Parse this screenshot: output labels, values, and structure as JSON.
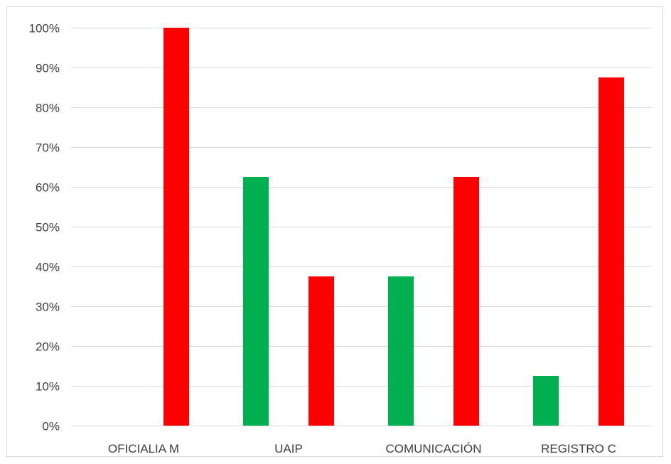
{
  "chart_data": {
    "type": "bar",
    "categories": [
      "OFICIALIA M",
      "UAIP",
      "COMUNICACIÓN",
      "REGISTRO C"
    ],
    "series": [
      {
        "values": [
          0,
          62.5,
          37.5,
          12.5
        ],
        "color": "#00b050"
      },
      {
        "values": [
          100,
          37.5,
          62.5,
          87.5
        ],
        "color": "#ff0000"
      }
    ],
    "ylim": [
      0,
      100
    ],
    "y_ticks": [
      0,
      10,
      20,
      30,
      40,
      50,
      60,
      70,
      80,
      90,
      100
    ],
    "y_tick_labels": [
      "0%",
      "10%",
      "20%",
      "30%",
      "40%",
      "50%",
      "60%",
      "70%",
      "80%",
      "90%",
      "100%"
    ],
    "grid": true,
    "legend": "none"
  }
}
